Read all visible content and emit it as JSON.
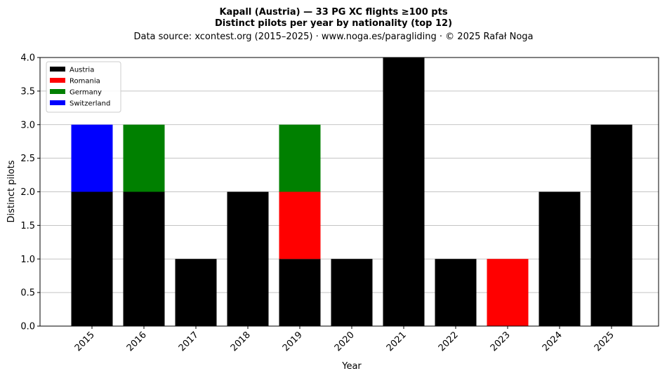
{
  "chart_data": {
    "type": "bar",
    "stacked": true,
    "title_line1": "Kapall (Austria)  —  33 PG XC flights ≥100 pts",
    "title_line2": "Distinct pilots per year by nationality (top 12)",
    "subtitle": "Data source: xcontest.org (2015–2025)  ·  www.noga.es/paragliding  ·  © 2025 Rafał Noga",
    "xlabel": "Year",
    "ylabel": "Distinct pilots",
    "ylim": [
      0,
      4
    ],
    "yticks": [
      "0.0",
      "0.5",
      "1.0",
      "1.5",
      "2.0",
      "2.5",
      "3.0",
      "3.5",
      "4.0"
    ],
    "grid": "y",
    "legend_position": "top-left",
    "categories": [
      "2015",
      "2016",
      "2017",
      "2018",
      "2019",
      "2020",
      "2021",
      "2022",
      "2023",
      "2024",
      "2025"
    ],
    "series": [
      {
        "name": "Austria",
        "color": "#000000",
        "values": [
          2,
          2,
          1,
          2,
          1,
          1,
          4,
          1,
          0,
          2,
          3
        ]
      },
      {
        "name": "Romania",
        "color": "#ff0000",
        "values": [
          0,
          0,
          0,
          0,
          1,
          0,
          0,
          0,
          1,
          0,
          0
        ]
      },
      {
        "name": "Germany",
        "color": "#008000",
        "values": [
          0,
          1,
          0,
          0,
          1,
          0,
          0,
          0,
          0,
          0,
          0
        ]
      },
      {
        "name": "Switzerland",
        "color": "#0000ff",
        "values": [
          1,
          0,
          0,
          0,
          0,
          0,
          0,
          0,
          0,
          0,
          0
        ]
      }
    ]
  }
}
